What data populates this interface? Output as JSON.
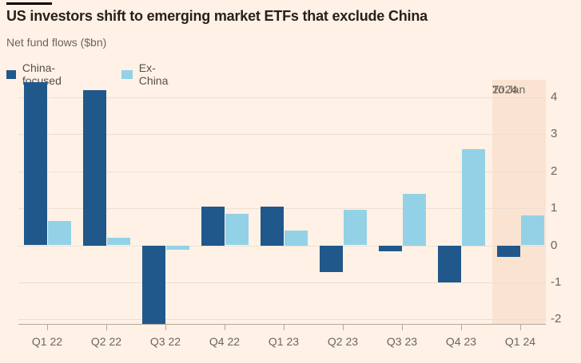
{
  "header": {
    "title": "US investors shift to emerging market ETFs that exclude China",
    "subtitle": "Net fund flows ($bn)"
  },
  "legend": [
    {
      "label": "China-focused",
      "color": "#20588c"
    },
    {
      "label": "Ex-China",
      "color": "#93d2e6"
    }
  ],
  "colors": {
    "background": "#fff1e5",
    "highlight_band": "#fbe3d2",
    "gridline": "#ebdfd3",
    "axis": "#b1a79b",
    "tick_text": "#6b655f",
    "title_text": "#26211d"
  },
  "chart_data": {
    "type": "bar",
    "title": "US investors shift to emerging market ETFs that exclude China",
    "subtitle": "Net fund flows ($bn)",
    "categories": [
      "Q1 22",
      "Q2 22",
      "Q3 22",
      "Q4 22",
      "Q1 23",
      "Q2 23",
      "Q3 23",
      "Q4 23",
      "Q1 24"
    ],
    "series": [
      {
        "name": "China-focused",
        "color": "#20588c",
        "values": [
          4.4,
          4.2,
          -2.1,
          1.05,
          1.05,
          -0.7,
          -0.15,
          -1.0,
          -0.3
        ]
      },
      {
        "name": "Ex-China",
        "color": "#93d2e6",
        "values": [
          0.65,
          0.2,
          -0.1,
          0.85,
          0.4,
          0.95,
          1.4,
          2.6,
          0.8
        ]
      }
    ],
    "xlabel": "",
    "ylabel": "Net fund flows ($bn)",
    "yticks": [
      -2,
      -1,
      0,
      1,
      2,
      3,
      4
    ],
    "ylim": [
      -2.12,
      4.47
    ],
    "grid": true,
    "legend_position": "top-left",
    "highlight": {
      "category": "Q1 24",
      "label": "To Jan 2024",
      "label_lines": [
        "To Jan",
        "2024"
      ]
    }
  }
}
